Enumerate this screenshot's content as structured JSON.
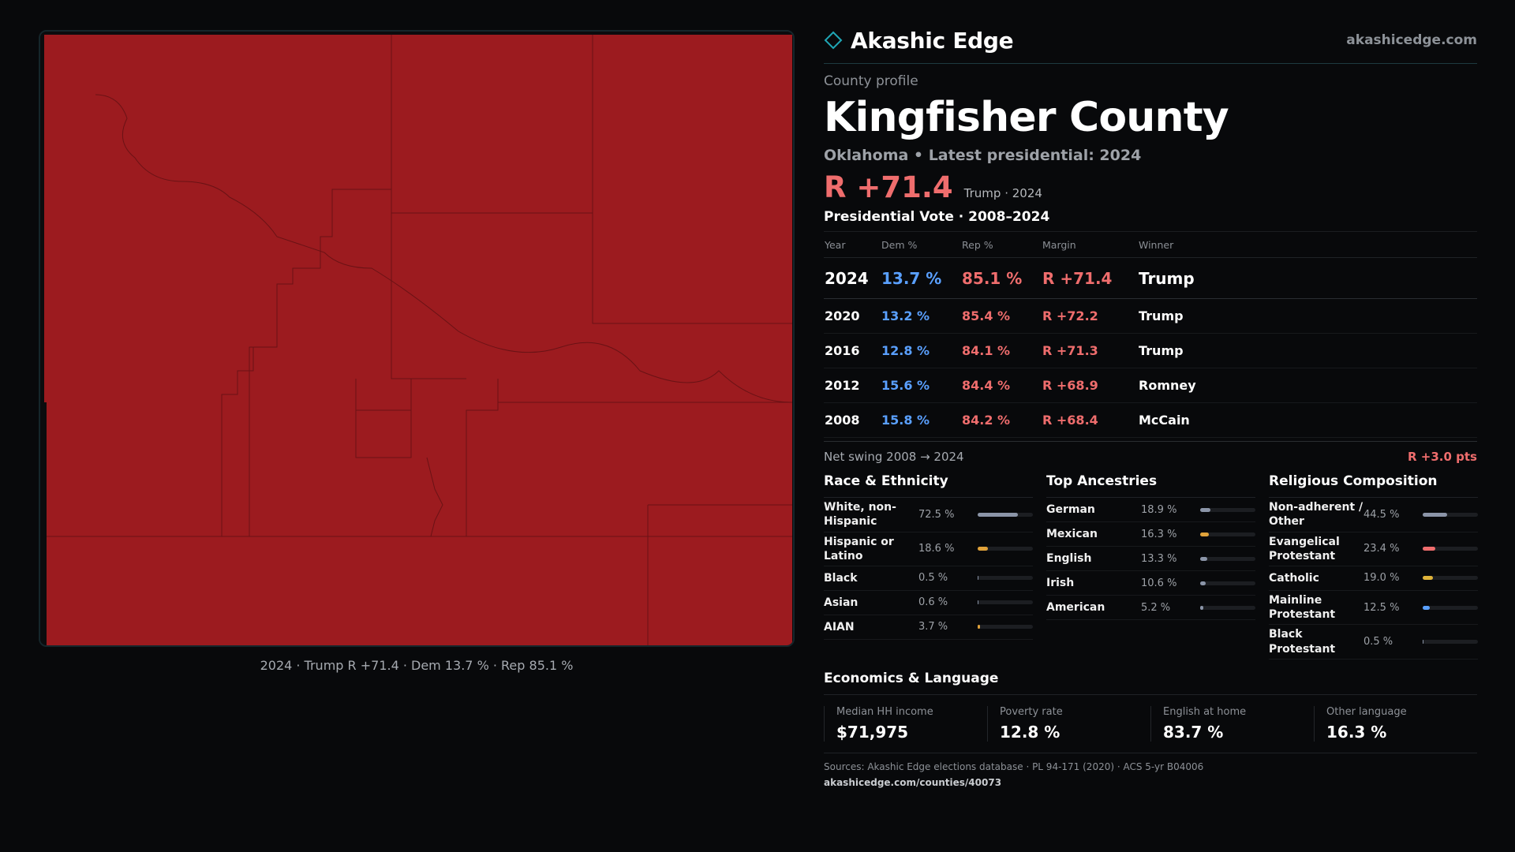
{
  "map": {
    "fill_color": "#9c1b1f",
    "caption": "2024 · Trump R +71.4 · Dem 13.7 % · Rep 85.1 %"
  },
  "brand": {
    "name": "Akashic Edge",
    "url": "akashicedge.com",
    "logo_icon": "diamond-outline-icon",
    "accent": "#1fa6b5"
  },
  "profile": {
    "eyebrow": "County profile",
    "county": "Kingfisher County",
    "subtitle": "Oklahoma • Latest presidential: 2024",
    "headline_margin": "R +71.4",
    "headline_meta": "Trump · 2024"
  },
  "votes": {
    "title": "Presidential Vote · 2008–2024",
    "headers": {
      "year": "Year",
      "dem": "Dem %",
      "rep": "Rep %",
      "margin": "Margin",
      "winner": "Winner"
    },
    "rows": [
      {
        "year": "2024",
        "dem": "13.7 %",
        "rep": "85.1 %",
        "margin": "R +71.4",
        "winner": "Trump"
      },
      {
        "year": "2020",
        "dem": "13.2 %",
        "rep": "85.4 %",
        "margin": "R +72.2",
        "winner": "Trump"
      },
      {
        "year": "2016",
        "dem": "12.8 %",
        "rep": "84.1 %",
        "margin": "R +71.3",
        "winner": "Trump"
      },
      {
        "year": "2012",
        "dem": "15.6 %",
        "rep": "84.4 %",
        "margin": "R +68.9",
        "winner": "Romney"
      },
      {
        "year": "2008",
        "dem": "15.8 %",
        "rep": "84.2 %",
        "margin": "R +68.4",
        "winner": "McCain"
      }
    ],
    "swing_label": "Net swing 2008 → 2024",
    "swing_value": "R +3.0 pts"
  },
  "demographics": [
    {
      "title": "Race & Ethnicity",
      "items": [
        {
          "label": "White, non-Hispanic",
          "pct": "72.5 %",
          "value": 72.5,
          "color": "#8b95a8"
        },
        {
          "label": "Hispanic or Latino",
          "pct": "18.6 %",
          "value": 18.6,
          "color": "#e0a23a"
        },
        {
          "label": "Black",
          "pct": "0.5 %",
          "value": 0.5,
          "color": "#8b95a8"
        },
        {
          "label": "Asian",
          "pct": "0.6 %",
          "value": 0.6,
          "color": "#8b95a8"
        },
        {
          "label": "AIAN",
          "pct": "3.7 %",
          "value": 3.7,
          "color": "#e0a23a"
        }
      ]
    },
    {
      "title": "Top Ancestries",
      "items": [
        {
          "label": "German",
          "pct": "18.9 %",
          "value": 18.9,
          "color": "#8b95a8"
        },
        {
          "label": "Mexican",
          "pct": "16.3 %",
          "value": 16.3,
          "color": "#e0a23a"
        },
        {
          "label": "English",
          "pct": "13.3 %",
          "value": 13.3,
          "color": "#8b95a8"
        },
        {
          "label": "Irish",
          "pct": "10.6 %",
          "value": 10.6,
          "color": "#8b95a8"
        },
        {
          "label": "American",
          "pct": "5.2 %",
          "value": 5.2,
          "color": "#8b95a8"
        }
      ]
    },
    {
      "title": "Religious Composition",
      "items": [
        {
          "label": "Non-adherent / Other",
          "pct": "44.5 %",
          "value": 44.5,
          "color": "#8b95a8"
        },
        {
          "label": "Evangelical Protestant",
          "pct": "23.4 %",
          "value": 23.4,
          "color": "#ef6d6d"
        },
        {
          "label": "Catholic",
          "pct": "19.0 %",
          "value": 19.0,
          "color": "#e0b43a"
        },
        {
          "label": "Mainline Protestant",
          "pct": "12.5 %",
          "value": 12.5,
          "color": "#5aa0ff"
        },
        {
          "label": "Black Protestant",
          "pct": "0.5 %",
          "value": 0.5,
          "color": "#8b95a8"
        }
      ]
    }
  ],
  "economics": {
    "title": "Economics & Language",
    "items": [
      {
        "label": "Median HH income",
        "value": "$71,975"
      },
      {
        "label": "Poverty rate",
        "value": "12.8 %"
      },
      {
        "label": "English at home",
        "value": "83.7 %"
      },
      {
        "label": "Other language",
        "value": "16.3 %"
      }
    ]
  },
  "sources": {
    "text": "Sources: Akashic Edge elections database · PL 94-171 (2020) · ACS 5-yr B04006",
    "url": "akashicedge.com/counties/40073"
  }
}
